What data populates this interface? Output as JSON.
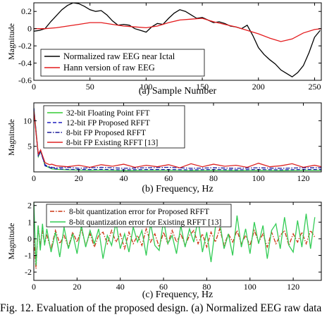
{
  "chart_data": [
    {
      "type": "line",
      "panel_id": "a",
      "xlabel": "(a)  Sample Number",
      "ylabel": "Magnitude",
      "xlim": [
        0,
        256
      ],
      "ylim": [
        -0.6,
        0.3
      ],
      "xticks": [
        0,
        50,
        100,
        150,
        200,
        250
      ],
      "xtick_labels": [
        "0",
        "50",
        "100",
        "150",
        "200",
        "250"
      ],
      "yticks": [
        -0.6,
        -0.4,
        -0.2,
        0,
        0.2
      ],
      "ytick_labels": [
        "-0.6",
        "-0.4",
        "-0.2",
        "0",
        "0.2"
      ],
      "grid": false,
      "legend_position": "bottom-left",
      "series": [
        {
          "name": "Normalized raw EEG near Ictal",
          "color": "#000000",
          "x": [
            0,
            5,
            10,
            15,
            20,
            25,
            30,
            35,
            40,
            45,
            50,
            55,
            60,
            65,
            70,
            75,
            80,
            85,
            90,
            95,
            100,
            105,
            110,
            115,
            120,
            125,
            130,
            135,
            140,
            145,
            150,
            155,
            160,
            165,
            170,
            175,
            180,
            185,
            190,
            195,
            200,
            205,
            210,
            215,
            220,
            225,
            230,
            235,
            240,
            245,
            250,
            255
          ],
          "y": [
            -0.03,
            -0.02,
            0.0,
            0.08,
            0.15,
            0.22,
            0.27,
            0.3,
            0.29,
            0.26,
            0.22,
            0.2,
            0.21,
            0.16,
            0.09,
            0.04,
            0.05,
            0.04,
            0.0,
            -0.02,
            -0.04,
            0.02,
            0.06,
            0.05,
            0.12,
            0.18,
            0.22,
            0.2,
            0.16,
            0.12,
            0.13,
            0.1,
            0.07,
            0.08,
            0.06,
            0.03,
            0.02,
            0.0,
            0.04,
            -0.08,
            -0.22,
            -0.3,
            -0.36,
            -0.41,
            -0.48,
            -0.52,
            -0.56,
            -0.51,
            -0.43,
            -0.28,
            -0.1,
            -0.02
          ]
        },
        {
          "name": "Hann version of raw EEG",
          "color": "#e41a1c",
          "x": [
            0,
            10,
            20,
            30,
            40,
            50,
            60,
            70,
            80,
            90,
            100,
            110,
            120,
            130,
            140,
            150,
            160,
            170,
            180,
            190,
            200,
            210,
            220,
            230,
            240,
            250,
            256
          ],
          "y": [
            0.0,
            0.0,
            0.01,
            0.03,
            0.05,
            0.07,
            0.07,
            0.05,
            0.03,
            0.02,
            0.01,
            0.03,
            0.07,
            0.1,
            0.11,
            0.12,
            0.08,
            0.05,
            0.02,
            -0.02,
            -0.06,
            -0.11,
            -0.15,
            -0.12,
            -0.05,
            -0.01,
            0.0
          ]
        }
      ]
    },
    {
      "type": "line",
      "panel_id": "b",
      "xlabel": "(b)  Frequency, Hz",
      "ylabel": "Magnitude",
      "xlim": [
        0,
        128
      ],
      "ylim": [
        0,
        13.5
      ],
      "xticks": [
        0,
        20,
        40,
        60,
        80,
        100,
        120
      ],
      "xtick_labels": [
        "0",
        "20",
        "40",
        "60",
        "80",
        "100",
        "120"
      ],
      "yticks": [
        5,
        10
      ],
      "ytick_labels": [
        "5",
        "10"
      ],
      "grid": false,
      "legend_position": "top-left",
      "series": [
        {
          "name": "32-bit Floating Point FFT",
          "color": "#33cc33",
          "style": "solid",
          "x": [
            0,
            1,
            2,
            3,
            4,
            5,
            6,
            7,
            8,
            10,
            15,
            20,
            25,
            30,
            40,
            50,
            60,
            70,
            80,
            90,
            100,
            110,
            120,
            128
          ],
          "y": [
            12.5,
            8.0,
            3.0,
            4.0,
            2.8,
            1.2,
            1.0,
            0.8,
            0.6,
            0.5,
            0.4,
            0.35,
            0.3,
            0.35,
            0.25,
            0.3,
            0.3,
            0.25,
            0.3,
            0.25,
            0.3,
            0.25,
            0.3,
            0.3
          ]
        },
        {
          "name": "12-bit FP Proposed RFFT",
          "color": "#1f1fbf",
          "style": "dashed",
          "x": [
            0,
            1,
            2,
            3,
            4,
            5,
            6,
            7,
            8,
            10,
            15,
            20,
            25,
            30,
            40,
            50,
            60,
            70,
            80,
            90,
            100,
            110,
            120,
            128
          ],
          "y": [
            12.5,
            7.8,
            3.0,
            4.0,
            2.8,
            1.2,
            1.0,
            0.9,
            0.7,
            0.6,
            0.5,
            0.45,
            0.45,
            0.5,
            0.4,
            0.45,
            0.45,
            0.4,
            0.45,
            0.4,
            0.45,
            0.4,
            0.45,
            0.45
          ]
        },
        {
          "name": "8-bit FP Proposed RFFT",
          "color": "#1a1a99",
          "style": "dashdot",
          "x": [
            0,
            1,
            2,
            3,
            4,
            5,
            6,
            7,
            8,
            10,
            15,
            20,
            25,
            30,
            40,
            50,
            60,
            70,
            80,
            90,
            100,
            110,
            120,
            128
          ],
          "y": [
            12.3,
            7.6,
            3.2,
            4.1,
            2.6,
            1.4,
            1.1,
            1.0,
            0.9,
            0.8,
            0.9,
            0.7,
            0.8,
            0.9,
            0.7,
            0.8,
            0.9,
            0.7,
            0.8,
            0.7,
            0.8,
            0.7,
            0.8,
            0.8
          ]
        },
        {
          "name": "8-bit FP Existing RFFT [13]",
          "color": "#dd2222",
          "style": "solid",
          "x": [
            0,
            1,
            2,
            3,
            4,
            5,
            6,
            7,
            8,
            10,
            15,
            20,
            25,
            30,
            35,
            40,
            45,
            50,
            55,
            60,
            65,
            70,
            75,
            80,
            85,
            90,
            95,
            100,
            105,
            110,
            115,
            120,
            125,
            128
          ],
          "y": [
            12.0,
            7.5,
            3.5,
            4.3,
            3.0,
            1.8,
            1.6,
            1.4,
            1.5,
            1.2,
            1.0,
            1.3,
            0.9,
            1.4,
            1.1,
            1.5,
            0.9,
            1.3,
            1.0,
            1.4,
            0.8,
            1.6,
            1.0,
            1.5,
            1.1,
            1.3,
            0.9,
            1.7,
            1.0,
            1.2,
            1.6,
            0.9,
            1.3,
            1.0
          ]
        }
      ]
    },
    {
      "type": "line",
      "panel_id": "c",
      "xlabel": "(c)  Frequency, Hz",
      "ylabel": "Magnitude",
      "xlim": [
        0,
        133
      ],
      "ylim": [
        -2.5,
        2.2
      ],
      "xticks": [
        0,
        20,
        40,
        60,
        80,
        100,
        120
      ],
      "xtick_labels": [
        "0",
        "20",
        "40",
        "60",
        "80",
        "100",
        "120"
      ],
      "yticks": [
        -2,
        -1,
        0,
        1,
        2
      ],
      "ytick_labels": [
        "-2",
        "-1",
        "0",
        "1",
        "2"
      ],
      "grid": false,
      "legend_position": "top",
      "series": [
        {
          "name": "8-bit quantization error for Proposed RFFT",
          "color": "#cc3311",
          "style": "dashdot",
          "x": [
            0,
            1,
            2,
            3,
            4,
            5,
            6,
            8,
            10,
            12,
            14,
            16,
            18,
            20,
            22,
            24,
            26,
            28,
            30,
            32,
            34,
            36,
            38,
            40,
            42,
            44,
            46,
            48,
            50,
            52,
            54,
            56,
            58,
            60,
            62,
            64,
            66,
            68,
            70,
            72,
            74,
            76,
            78,
            80,
            82,
            84,
            86,
            88,
            90,
            92,
            94,
            96,
            98,
            100,
            102,
            104,
            106,
            108,
            110,
            112,
            114,
            116,
            118,
            120,
            122,
            124,
            126,
            128,
            130
          ],
          "y": [
            0,
            -1.8,
            0.8,
            -0.4,
            0.5,
            -0.3,
            0.2,
            -0.6,
            0.5,
            -0.3,
            0.2,
            -0.5,
            0.4,
            -0.2,
            0.6,
            -0.4,
            0.3,
            -0.5,
            0.2,
            0.4,
            -0.3,
            0.5,
            -0.2,
            0.3,
            -0.6,
            0.4,
            -0.3,
            0.2,
            -0.4,
            0.6,
            -0.2,
            0.3,
            -0.5,
            0.4,
            -0.3,
            0.5,
            -0.2,
            0.3,
            -0.4,
            0.2,
            0.5,
            -0.3,
            0.3,
            -0.5,
            0.4,
            -0.2,
            0.6,
            -0.4,
            0.3,
            -0.2,
            0.5,
            -0.3,
            0.2,
            -0.4,
            0.5,
            -0.2,
            0.3,
            -0.5,
            0.4,
            -0.3,
            0.2,
            0.5,
            -0.4,
            0.3,
            -0.2,
            0.4,
            -0.3,
            0.5,
            0.1
          ]
        },
        {
          "name": "8-bit quantization error for Existing RFFT [13]",
          "color": "#33cc55",
          "style": "solid",
          "x": [
            0,
            1,
            2,
            3,
            4,
            5,
            6,
            8,
            10,
            12,
            14,
            16,
            18,
            20,
            22,
            24,
            26,
            28,
            30,
            32,
            34,
            36,
            38,
            40,
            42,
            44,
            46,
            48,
            50,
            52,
            54,
            56,
            58,
            60,
            62,
            64,
            66,
            68,
            70,
            72,
            74,
            76,
            78,
            80,
            82,
            84,
            86,
            88,
            90,
            92,
            94,
            96,
            98,
            100,
            102,
            104,
            106,
            108,
            110,
            112,
            114,
            116,
            118,
            120,
            122,
            124,
            126,
            128,
            130
          ],
          "y": [
            2.2,
            -1.6,
            0.8,
            -0.7,
            0.9,
            -0.4,
            0.6,
            -0.8,
            0.4,
            -1.1,
            0.7,
            -0.6,
            0.3,
            -0.9,
            0.8,
            -0.5,
            0.5,
            -0.3,
            0.6,
            -1.2,
            0.2,
            -0.4,
            1.0,
            -0.6,
            0.3,
            -0.8,
            0.7,
            -0.2,
            0.5,
            -1.0,
            0.9,
            -0.4,
            -0.7,
            1.1,
            -0.3,
            0.2,
            -0.9,
            0.8,
            -0.5,
            0.6,
            -0.2,
            1.2,
            -0.8,
            0.4,
            -1.4,
            0.7,
            1.0,
            -0.6,
            0.3,
            -1.0,
            1.4,
            -0.5,
            0.6,
            -0.9,
            1.0,
            -0.3,
            0.8,
            -1.2,
            0.5,
            0.9,
            -0.6,
            1.3,
            -0.4,
            -0.8,
            1.1,
            -0.5,
            1.5,
            -0.6,
            1.3
          ]
        }
      ]
    }
  ],
  "caption": "Fig. 12.   Evaluation of the proposed design. (a) Normalized EEG raw data"
}
